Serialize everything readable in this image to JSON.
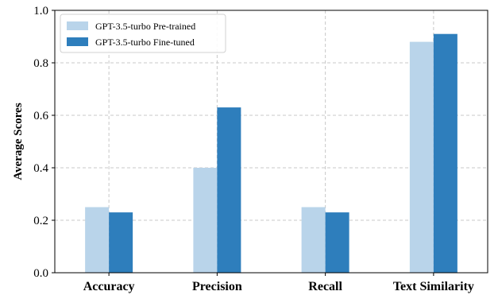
{
  "chart_data": {
    "type": "bar",
    "title": "",
    "xlabel": "",
    "ylabel": "Average Scores",
    "ylim": [
      0,
      1.0
    ],
    "yticks": [
      "0.0",
      "0.2",
      "0.4",
      "0.6",
      "0.8",
      "1.0"
    ],
    "categories": [
      "Accuracy",
      "Precision",
      "Recall",
      "Text Similarity"
    ],
    "series": [
      {
        "name": "GPT-3.5-turbo Pre-trained",
        "values": [
          0.25,
          0.4,
          0.25,
          0.88
        ],
        "color": "#b9d4ea"
      },
      {
        "name": "GPT-3.5-turbo Fine-tuned",
        "values": [
          0.23,
          0.63,
          0.23,
          0.91
        ],
        "color": "#2e7ebc"
      }
    ],
    "grid": true,
    "legend_position": "top-left"
  }
}
